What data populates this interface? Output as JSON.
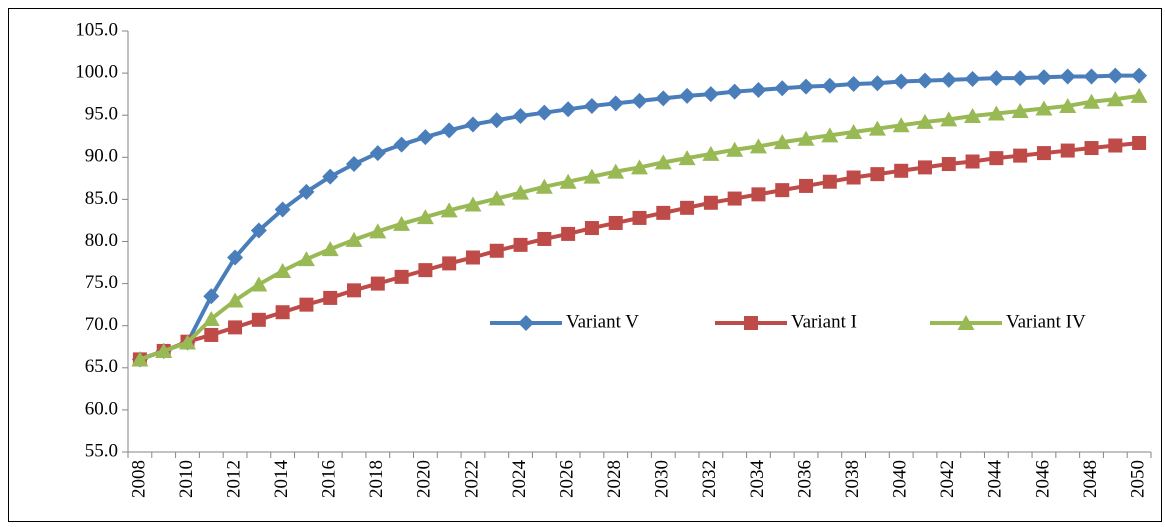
{
  "chart_data": {
    "type": "line",
    "categories": [
      "2008",
      null,
      "2010",
      null,
      "2012",
      null,
      "2014",
      null,
      "2016",
      null,
      "2018",
      null,
      "2020",
      null,
      "2022",
      null,
      "2024",
      null,
      "2026",
      null,
      "2028",
      null,
      "2030",
      null,
      "2032",
      null,
      "2034",
      null,
      "2036",
      null,
      "2038",
      null,
      "2040",
      null,
      "2042",
      null,
      "2044",
      null,
      "2046",
      null,
      "2048",
      null,
      "2050"
    ],
    "series": [
      {
        "name": "Variant V",
        "color": "#4a7ebb",
        "marker": "diamond",
        "values": [
          66,
          67,
          68,
          73.5,
          78.1,
          81.3,
          83.8,
          85.9,
          87.7,
          89.2,
          90.5,
          91.5,
          92.4,
          93.2,
          93.9,
          94.4,
          94.9,
          95.3,
          95.7,
          96.1,
          96.4,
          96.7,
          97.0,
          97.3,
          97.5,
          97.8,
          98.0,
          98.2,
          98.4,
          98.5,
          98.7,
          98.8,
          99.0,
          99.1,
          99.2,
          99.3,
          99.4,
          99.4,
          99.5,
          99.6,
          99.6,
          99.7,
          99.7
        ]
      },
      {
        "name": "Variant I",
        "color": "#be4b48",
        "marker": "square",
        "values": [
          66,
          67,
          68.1,
          68.9,
          69.8,
          70.7,
          71.6,
          72.5,
          73.3,
          74.2,
          75.0,
          75.8,
          76.6,
          77.4,
          78.1,
          78.9,
          79.6,
          80.3,
          80.9,
          81.6,
          82.2,
          82.8,
          83.4,
          84.0,
          84.6,
          85.1,
          85.6,
          86.1,
          86.6,
          87.1,
          87.6,
          88.0,
          88.4,
          88.8,
          89.2,
          89.5,
          89.9,
          90.2,
          90.5,
          90.8,
          91.1,
          91.4,
          91.7
        ]
      },
      {
        "name": "Variant IV",
        "color": "#98b954",
        "marker": "triangle",
        "values": [
          66,
          67,
          68,
          70.8,
          73.0,
          74.9,
          76.5,
          77.9,
          79.1,
          80.2,
          81.2,
          82.1,
          82.9,
          83.7,
          84.4,
          85.1,
          85.8,
          86.5,
          87.1,
          87.7,
          88.3,
          88.8,
          89.4,
          89.9,
          90.4,
          90.9,
          91.3,
          91.8,
          92.2,
          92.6,
          93.0,
          93.4,
          93.8,
          94.2,
          94.5,
          94.9,
          95.2,
          95.5,
          95.8,
          96.1,
          96.6,
          96.9,
          97.3
        ]
      }
    ],
    "ylim": [
      55,
      105
    ],
    "yticks": [
      {
        "value": 55,
        "label": "55.0"
      },
      {
        "value": 60,
        "label": "60.0"
      },
      {
        "value": 65,
        "label": "65.0"
      },
      {
        "value": 70,
        "label": "70.0"
      },
      {
        "value": 75,
        "label": "75.0"
      },
      {
        "value": 80,
        "label": "80.0"
      },
      {
        "value": 85,
        "label": "85.0"
      },
      {
        "value": 90,
        "label": "90.0"
      },
      {
        "value": 95,
        "label": "95.0"
      },
      {
        "value": 100,
        "label": "100.0"
      },
      {
        "value": 105,
        "label": "105.0"
      }
    ],
    "grid": false,
    "legend": "right"
  }
}
